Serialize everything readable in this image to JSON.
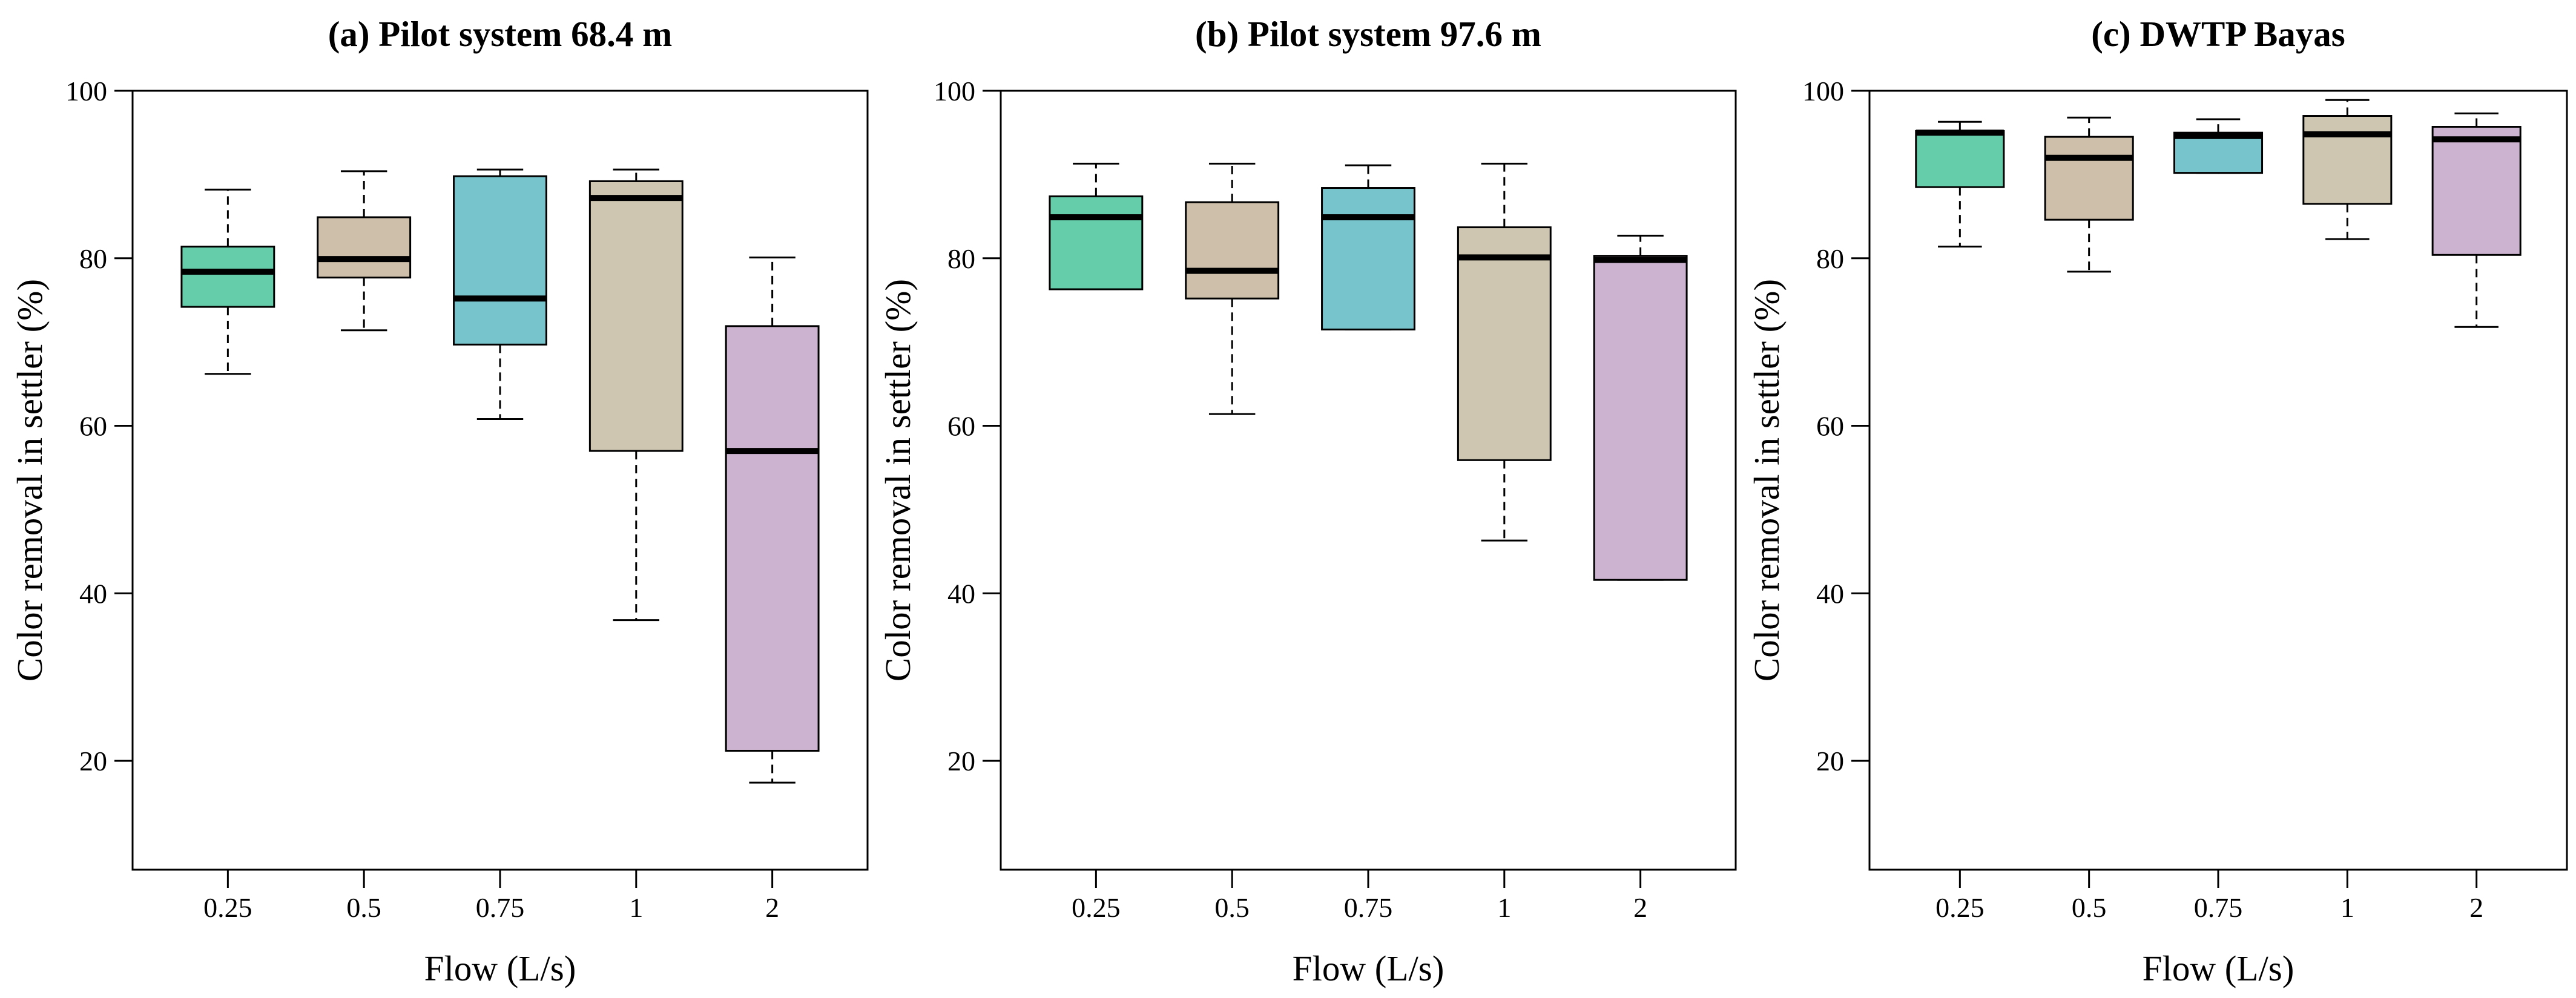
{
  "chart_data": [
    {
      "type": "box",
      "title": "(a) Pilot system 68.4 m",
      "xlabel": "Flow (L/s)",
      "ylabel": "Color removal in settler (%)",
      "ylim": [
        7,
        100
      ],
      "yticks": [
        20,
        40,
        60,
        80,
        100
      ],
      "grid": false,
      "categories": [
        "0.25",
        "0.5",
        "0.75",
        "1",
        "2"
      ],
      "colors": [
        "#66CDAA",
        "#CDBFA9",
        "#78C4CC",
        "#CEC6B0",
        "#CCB3CF"
      ],
      "boxes": [
        {
          "whisker_low": 66.2,
          "q1": 74.2,
          "median": 78.4,
          "q3": 81.4,
          "whisker_high": 88.2
        },
        {
          "whisker_low": 71.4,
          "q1": 77.7,
          "median": 79.9,
          "q3": 84.9,
          "whisker_high": 90.4
        },
        {
          "whisker_low": 60.8,
          "q1": 69.7,
          "median": 75.2,
          "q3": 89.8,
          "whisker_high": 90.6
        },
        {
          "whisker_low": 36.8,
          "q1": 57.0,
          "median": 87.2,
          "q3": 89.2,
          "whisker_high": 90.6
        },
        {
          "whisker_low": 17.4,
          "q1": 21.2,
          "median": 57.0,
          "q3": 71.9,
          "whisker_high": 80.1
        }
      ]
    },
    {
      "type": "box",
      "title": "(b) Pilot system 97.6 m",
      "xlabel": "Flow (L/s)",
      "ylabel": "Color removal in settler (%)",
      "ylim": [
        7,
        100
      ],
      "yticks": [
        20,
        40,
        60,
        80,
        100
      ],
      "grid": false,
      "categories": [
        "0.25",
        "0.5",
        "0.75",
        "1",
        "2"
      ],
      "colors": [
        "#66CDAA",
        "#CDBFA9",
        "#78C4CC",
        "#CEC6B0",
        "#CCB3CF"
      ],
      "boxes": [
        {
          "whisker_low": 76.3,
          "q1": 76.3,
          "median": 84.9,
          "q3": 87.4,
          "whisker_high": 91.3
        },
        {
          "whisker_low": 61.4,
          "q1": 75.2,
          "median": 78.5,
          "q3": 86.7,
          "whisker_high": 91.3
        },
        {
          "whisker_low": 71.5,
          "q1": 71.5,
          "median": 84.9,
          "q3": 88.4,
          "whisker_high": 91.1
        },
        {
          "whisker_low": 46.3,
          "q1": 55.9,
          "median": 80.1,
          "q3": 83.7,
          "whisker_high": 91.3
        },
        {
          "whisker_low": 41.6,
          "q1": 41.6,
          "median": 79.8,
          "q3": 80.3,
          "whisker_high": 82.7
        }
      ]
    },
    {
      "type": "box",
      "title": "(c) DWTP Bayas",
      "xlabel": "Flow (L/s)",
      "ylabel": "Color removal in settler (%)",
      "ylim": [
        7,
        100
      ],
      "yticks": [
        20,
        40,
        60,
        80,
        100
      ],
      "grid": false,
      "categories": [
        "0.25",
        "0.5",
        "0.75",
        "1",
        "2"
      ],
      "colors": [
        "#66CDAA",
        "#CDBFA9",
        "#78C4CC",
        "#CEC6B0",
        "#CCB3CF"
      ],
      "boxes": [
        {
          "whisker_low": 81.4,
          "q1": 88.5,
          "median": 95.0,
          "q3": 95.2,
          "whisker_high": 96.3
        },
        {
          "whisker_low": 78.4,
          "q1": 84.6,
          "median": 92.0,
          "q3": 94.5,
          "whisker_high": 96.8
        },
        {
          "whisker_low": 90.2,
          "q1": 90.2,
          "median": 94.6,
          "q3": 95.0,
          "whisker_high": 96.6
        },
        {
          "whisker_low": 82.3,
          "q1": 86.5,
          "median": 94.8,
          "q3": 97.0,
          "whisker_high": 98.9
        },
        {
          "whisker_low": 71.8,
          "q1": 80.4,
          "median": 94.2,
          "q3": 95.7,
          "whisker_high": 97.3
        }
      ]
    }
  ]
}
